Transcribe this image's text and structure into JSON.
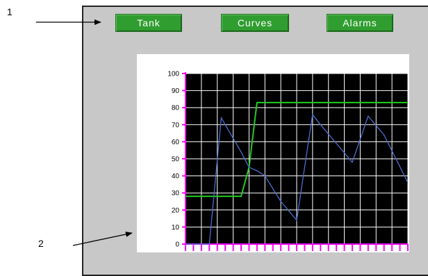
{
  "callouts": {
    "one": "1",
    "two": "2"
  },
  "nav": {
    "tank_label": "Tank",
    "curves_label": "Curves",
    "alarms_label": "Alarms"
  },
  "colors": {
    "panel_bg": "#c8c8c8",
    "button_green": "#2f9d2f",
    "plot_bg": "#000000",
    "grid": "#ffffff",
    "axis": "#ff00ff",
    "series_green": "#22cc22",
    "series_blue": "#4a6fd0"
  },
  "chart_data": {
    "type": "line",
    "ylim": [
      0,
      100
    ],
    "xlim": [
      0,
      28
    ],
    "ytick_labels": [
      "0",
      "10",
      "20",
      "30",
      "40",
      "50",
      "60",
      "70",
      "80",
      "90",
      "100"
    ],
    "x_ticks": [
      0,
      1,
      2,
      3,
      4,
      5,
      6,
      7,
      8,
      9,
      10,
      11,
      12,
      13,
      14,
      15,
      16,
      17,
      18,
      19,
      20,
      21,
      22,
      23,
      24,
      25,
      26,
      27,
      28
    ],
    "grid": true,
    "series": [
      {
        "color": "#22cc22",
        "points": [
          [
            0,
            28
          ],
          [
            7,
            28
          ],
          [
            8,
            45
          ],
          [
            9,
            83
          ],
          [
            28,
            83
          ]
        ]
      },
      {
        "color": "#4a6fd0",
        "points": [
          [
            0,
            0
          ],
          [
            3,
            0
          ],
          [
            4.5,
            74
          ],
          [
            6,
            62
          ],
          [
            7,
            54
          ],
          [
            8,
            45
          ],
          [
            9,
            43
          ],
          [
            10,
            40
          ],
          [
            12,
            25
          ],
          [
            14,
            14
          ],
          [
            16,
            76
          ],
          [
            17,
            70
          ],
          [
            19,
            59
          ],
          [
            21,
            48
          ],
          [
            23,
            75
          ],
          [
            25,
            64
          ],
          [
            28,
            36
          ]
        ]
      }
    ]
  }
}
